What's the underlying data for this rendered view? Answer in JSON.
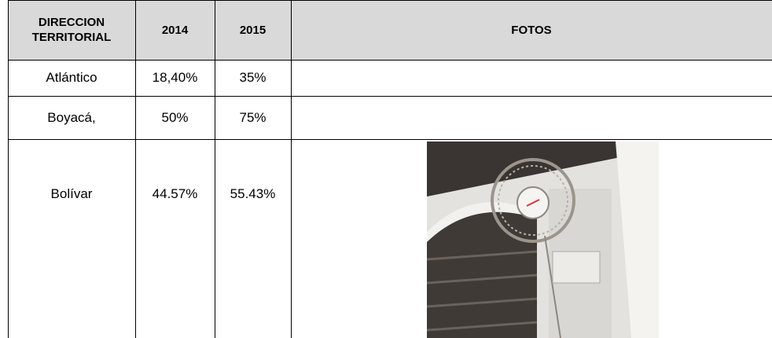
{
  "table": {
    "header": [
      "DIRECCION TERRITORIAL",
      "2014",
      "2015",
      "FOTOS"
    ],
    "rows": [
      [
        "Atlántico",
        "18,40%",
        "35%"
      ],
      [
        "Boyacá,",
        "50%",
        "75%"
      ],
      [
        "Bolívar",
        "44.57%",
        "55.43%"
      ]
    ]
  }
}
